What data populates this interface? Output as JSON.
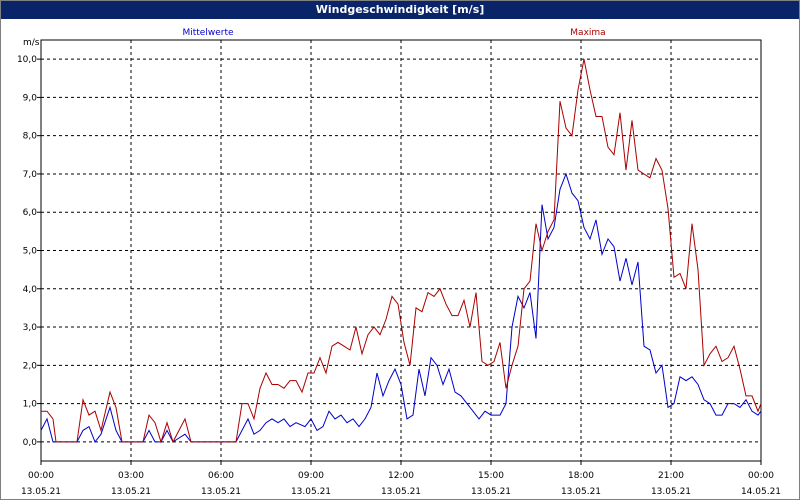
{
  "window": {
    "title": "Windgeschwindigkeit [m/s]"
  },
  "chart_data": {
    "type": "line",
    "title": "Windgeschwindigkeit [m/s]",
    "ylabel": "m/s",
    "xlabel": "",
    "ylim": [
      -0.5,
      10.5
    ],
    "xlim": [
      0,
      24
    ],
    "grid": true,
    "legend": "top",
    "y_ticks": [
      {
        "value": 0,
        "label": "0,0"
      },
      {
        "value": 1,
        "label": "1,0"
      },
      {
        "value": 2,
        "label": "2,0"
      },
      {
        "value": 3,
        "label": "3,0"
      },
      {
        "value": 4,
        "label": "4,0"
      },
      {
        "value": 5,
        "label": "5,0"
      },
      {
        "value": 6,
        "label": "6,0"
      },
      {
        "value": 7,
        "label": "7,0"
      },
      {
        "value": 8,
        "label": "8,0"
      },
      {
        "value": 9,
        "label": "9,0"
      },
      {
        "value": 10,
        "label": "10,0"
      }
    ],
    "x_ticks": [
      {
        "value": 0,
        "time": "00:00",
        "date": "13.05.21"
      },
      {
        "value": 3,
        "time": "03:00",
        "date": "13.05.21"
      },
      {
        "value": 6,
        "time": "06:00",
        "date": "13.05.21"
      },
      {
        "value": 9,
        "time": "09:00",
        "date": "13.05.21"
      },
      {
        "value": 12,
        "time": "12:00",
        "date": "13.05.21"
      },
      {
        "value": 15,
        "time": "15:00",
        "date": "13.05.21"
      },
      {
        "value": 18,
        "time": "18:00",
        "date": "13.05.21"
      },
      {
        "value": 21,
        "time": "21:00",
        "date": "13.05.21"
      },
      {
        "value": 24,
        "time": "00:00",
        "date": "14.05.21"
      }
    ],
    "series": [
      {
        "name": "Mittelwerte",
        "color": "#0000cc",
        "points": [
          [
            0,
            0.3
          ],
          [
            0.2,
            0.6
          ],
          [
            0.4,
            0
          ],
          [
            1.2,
            0
          ],
          [
            1.4,
            0.3
          ],
          [
            1.6,
            0.4
          ],
          [
            1.8,
            0
          ],
          [
            2.0,
            0.2
          ],
          [
            2.3,
            0.9
          ],
          [
            2.5,
            0.3
          ],
          [
            2.7,
            0
          ],
          [
            3.4,
            0
          ],
          [
            3.6,
            0.3
          ],
          [
            3.8,
            0
          ],
          [
            4.0,
            0
          ],
          [
            4.2,
            0.3
          ],
          [
            4.4,
            0
          ],
          [
            4.6,
            0.1
          ],
          [
            4.8,
            0.2
          ],
          [
            5.0,
            0
          ],
          [
            6.5,
            0
          ],
          [
            6.7,
            0.3
          ],
          [
            6.9,
            0.6
          ],
          [
            7.1,
            0.2
          ],
          [
            7.3,
            0.3
          ],
          [
            7.5,
            0.5
          ],
          [
            7.7,
            0.6
          ],
          [
            7.9,
            0.5
          ],
          [
            8.1,
            0.6
          ],
          [
            8.3,
            0.4
          ],
          [
            8.5,
            0.5
          ],
          [
            8.8,
            0.4
          ],
          [
            9.0,
            0.6
          ],
          [
            9.2,
            0.3
          ],
          [
            9.4,
            0.4
          ],
          [
            9.6,
            0.8
          ],
          [
            9.8,
            0.6
          ],
          [
            10.0,
            0.7
          ],
          [
            10.2,
            0.5
          ],
          [
            10.4,
            0.6
          ],
          [
            10.6,
            0.4
          ],
          [
            10.8,
            0.6
          ],
          [
            11.0,
            0.9
          ],
          [
            11.2,
            1.8
          ],
          [
            11.4,
            1.2
          ],
          [
            11.6,
            1.6
          ],
          [
            11.8,
            1.9
          ],
          [
            12.0,
            1.5
          ],
          [
            12.2,
            0.6
          ],
          [
            12.4,
            0.7
          ],
          [
            12.6,
            1.9
          ],
          [
            12.8,
            1.2
          ],
          [
            13.0,
            2.2
          ],
          [
            13.2,
            2.0
          ],
          [
            13.4,
            1.5
          ],
          [
            13.6,
            1.9
          ],
          [
            13.8,
            1.3
          ],
          [
            14.0,
            1.2
          ],
          [
            14.2,
            1.0
          ],
          [
            14.4,
            0.8
          ],
          [
            14.6,
            0.6
          ],
          [
            14.8,
            0.8
          ],
          [
            15.0,
            0.7
          ],
          [
            15.3,
            0.7
          ],
          [
            15.5,
            1.0
          ],
          [
            15.7,
            3.0
          ],
          [
            15.9,
            3.8
          ],
          [
            16.1,
            3.5
          ],
          [
            16.3,
            3.9
          ],
          [
            16.5,
            2.7
          ],
          [
            16.7,
            6.2
          ],
          [
            16.9,
            5.3
          ],
          [
            17.1,
            5.6
          ],
          [
            17.3,
            6.6
          ],
          [
            17.5,
            7.0
          ],
          [
            17.7,
            6.5
          ],
          [
            17.9,
            6.3
          ],
          [
            18.1,
            5.6
          ],
          [
            18.3,
            5.3
          ],
          [
            18.5,
            5.8
          ],
          [
            18.7,
            4.9
          ],
          [
            18.9,
            5.3
          ],
          [
            19.1,
            5.1
          ],
          [
            19.3,
            4.2
          ],
          [
            19.5,
            4.8
          ],
          [
            19.7,
            4.1
          ],
          [
            19.9,
            4.7
          ],
          [
            20.1,
            2.5
          ],
          [
            20.3,
            2.4
          ],
          [
            20.5,
            1.8
          ],
          [
            20.7,
            2.0
          ],
          [
            20.9,
            0.9
          ],
          [
            21.1,
            1.0
          ],
          [
            21.3,
            1.7
          ],
          [
            21.5,
            1.6
          ],
          [
            21.7,
            1.7
          ],
          [
            21.9,
            1.5
          ],
          [
            22.1,
            1.1
          ],
          [
            22.3,
            1.0
          ],
          [
            22.5,
            0.7
          ],
          [
            22.7,
            0.7
          ],
          [
            22.9,
            1.0
          ],
          [
            23.1,
            1.0
          ],
          [
            23.3,
            0.9
          ],
          [
            23.5,
            1.1
          ],
          [
            23.7,
            0.8
          ],
          [
            23.9,
            0.7
          ],
          [
            24.0,
            0.8
          ]
        ]
      },
      {
        "name": "Maxima",
        "color": "#aa0000",
        "points": [
          [
            0,
            0.8
          ],
          [
            0.2,
            0.8
          ],
          [
            0.4,
            0.6
          ],
          [
            0.5,
            0
          ],
          [
            1.2,
            0
          ],
          [
            1.4,
            1.1
          ],
          [
            1.6,
            0.7
          ],
          [
            1.8,
            0.8
          ],
          [
            2.0,
            0.3
          ],
          [
            2.3,
            1.3
          ],
          [
            2.5,
            0.9
          ],
          [
            2.7,
            0
          ],
          [
            3.4,
            0
          ],
          [
            3.6,
            0.7
          ],
          [
            3.8,
            0.5
          ],
          [
            4.0,
            0
          ],
          [
            4.2,
            0.5
          ],
          [
            4.4,
            0
          ],
          [
            4.6,
            0.3
          ],
          [
            4.8,
            0.6
          ],
          [
            5.0,
            0
          ],
          [
            6.5,
            0
          ],
          [
            6.7,
            1.0
          ],
          [
            6.9,
            1.0
          ],
          [
            7.1,
            0.6
          ],
          [
            7.3,
            1.4
          ],
          [
            7.5,
            1.8
          ],
          [
            7.7,
            1.5
          ],
          [
            7.9,
            1.5
          ],
          [
            8.1,
            1.4
          ],
          [
            8.3,
            1.6
          ],
          [
            8.5,
            1.6
          ],
          [
            8.7,
            1.3
          ],
          [
            8.9,
            1.8
          ],
          [
            9.1,
            1.8
          ],
          [
            9.3,
            2.2
          ],
          [
            9.5,
            1.8
          ],
          [
            9.7,
            2.5
          ],
          [
            9.9,
            2.6
          ],
          [
            10.1,
            2.5
          ],
          [
            10.3,
            2.4
          ],
          [
            10.5,
            3.0
          ],
          [
            10.7,
            2.3
          ],
          [
            10.9,
            2.8
          ],
          [
            11.1,
            3.0
          ],
          [
            11.3,
            2.8
          ],
          [
            11.5,
            3.2
          ],
          [
            11.7,
            3.8
          ],
          [
            11.9,
            3.6
          ],
          [
            12.1,
            2.6
          ],
          [
            12.3,
            2.0
          ],
          [
            12.5,
            3.5
          ],
          [
            12.7,
            3.4
          ],
          [
            12.9,
            3.9
          ],
          [
            13.1,
            3.8
          ],
          [
            13.3,
            4.0
          ],
          [
            13.5,
            3.6
          ],
          [
            13.7,
            3.3
          ],
          [
            13.9,
            3.3
          ],
          [
            14.1,
            3.7
          ],
          [
            14.3,
            3.0
          ],
          [
            14.5,
            3.9
          ],
          [
            14.7,
            2.1
          ],
          [
            14.9,
            2.0
          ],
          [
            15.1,
            2.1
          ],
          [
            15.3,
            2.6
          ],
          [
            15.5,
            1.4
          ],
          [
            15.7,
            2.0
          ],
          [
            15.9,
            2.5
          ],
          [
            16.1,
            4.0
          ],
          [
            16.3,
            4.2
          ],
          [
            16.5,
            5.7
          ],
          [
            16.7,
            5.0
          ],
          [
            16.9,
            5.5
          ],
          [
            17.1,
            5.8
          ],
          [
            17.3,
            8.9
          ],
          [
            17.5,
            8.2
          ],
          [
            17.7,
            8.0
          ],
          [
            17.9,
            9.2
          ],
          [
            18.1,
            10.0
          ],
          [
            18.3,
            9.2
          ],
          [
            18.5,
            8.5
          ],
          [
            18.7,
            8.5
          ],
          [
            18.9,
            7.7
          ],
          [
            19.1,
            7.5
          ],
          [
            19.3,
            8.6
          ],
          [
            19.5,
            7.1
          ],
          [
            19.7,
            8.4
          ],
          [
            19.9,
            7.1
          ],
          [
            20.1,
            7.0
          ],
          [
            20.3,
            6.9
          ],
          [
            20.5,
            7.4
          ],
          [
            20.7,
            7.1
          ],
          [
            20.9,
            6.1
          ],
          [
            21.1,
            4.3
          ],
          [
            21.3,
            4.4
          ],
          [
            21.5,
            4.0
          ],
          [
            21.7,
            5.7
          ],
          [
            21.9,
            4.5
          ],
          [
            22.1,
            2.0
          ],
          [
            22.3,
            2.3
          ],
          [
            22.5,
            2.5
          ],
          [
            22.7,
            2.1
          ],
          [
            22.9,
            2.2
          ],
          [
            23.1,
            2.5
          ],
          [
            23.3,
            1.9
          ],
          [
            23.5,
            1.2
          ],
          [
            23.7,
            1.2
          ],
          [
            23.9,
            0.8
          ],
          [
            24.0,
            1.0
          ]
        ]
      }
    ]
  }
}
